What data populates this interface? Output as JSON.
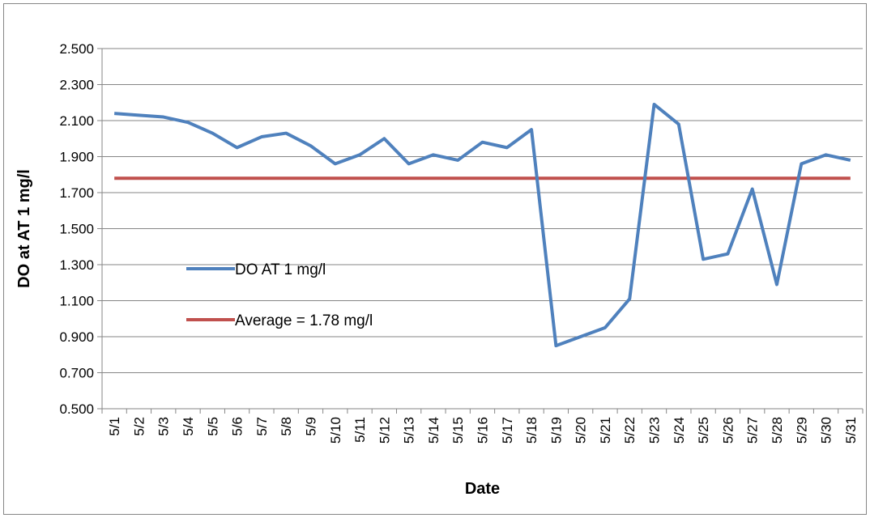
{
  "chart_data": {
    "type": "line",
    "xlabel": "Date",
    "ylabel": "DO at AT 1 mg/l",
    "ylim": [
      0.5,
      2.5
    ],
    "y_ticks": [
      "0.500",
      "0.700",
      "0.900",
      "1.100",
      "1.300",
      "1.500",
      "1.700",
      "1.900",
      "2.100",
      "2.300",
      "2.500"
    ],
    "grid": true,
    "legend_placement": "center-left",
    "categories": [
      "5/1",
      "5/2",
      "5/3",
      "5/4",
      "5/5",
      "5/6",
      "5/7",
      "5/8",
      "5/9",
      "5/10",
      "5/11",
      "5/12",
      "5/13",
      "5/14",
      "5/15",
      "5/16",
      "5/17",
      "5/18",
      "5/19",
      "5/20",
      "5/21",
      "5/22",
      "5/23",
      "5/24",
      "5/25",
      "5/26",
      "5/27",
      "5/28",
      "5/29",
      "5/30",
      "5/31"
    ],
    "series": [
      {
        "name": "DO AT 1 mg/l",
        "color": "#4F81BD",
        "values": [
          2.14,
          2.13,
          2.12,
          2.09,
          2.03,
          1.95,
          2.01,
          2.03,
          1.96,
          1.86,
          1.91,
          2.0,
          1.86,
          1.91,
          1.88,
          1.98,
          1.95,
          2.05,
          0.85,
          0.9,
          0.95,
          1.11,
          2.19,
          2.08,
          1.33,
          1.36,
          1.72,
          1.19,
          1.86,
          1.91,
          1.88
        ]
      },
      {
        "name": "Average = 1.78 mg/l",
        "color": "#C0504D",
        "values": [
          1.78,
          1.78,
          1.78,
          1.78,
          1.78,
          1.78,
          1.78,
          1.78,
          1.78,
          1.78,
          1.78,
          1.78,
          1.78,
          1.78,
          1.78,
          1.78,
          1.78,
          1.78,
          1.78,
          1.78,
          1.78,
          1.78,
          1.78,
          1.78,
          1.78,
          1.78,
          1.78,
          1.78,
          1.78,
          1.78,
          1.78
        ]
      }
    ]
  }
}
